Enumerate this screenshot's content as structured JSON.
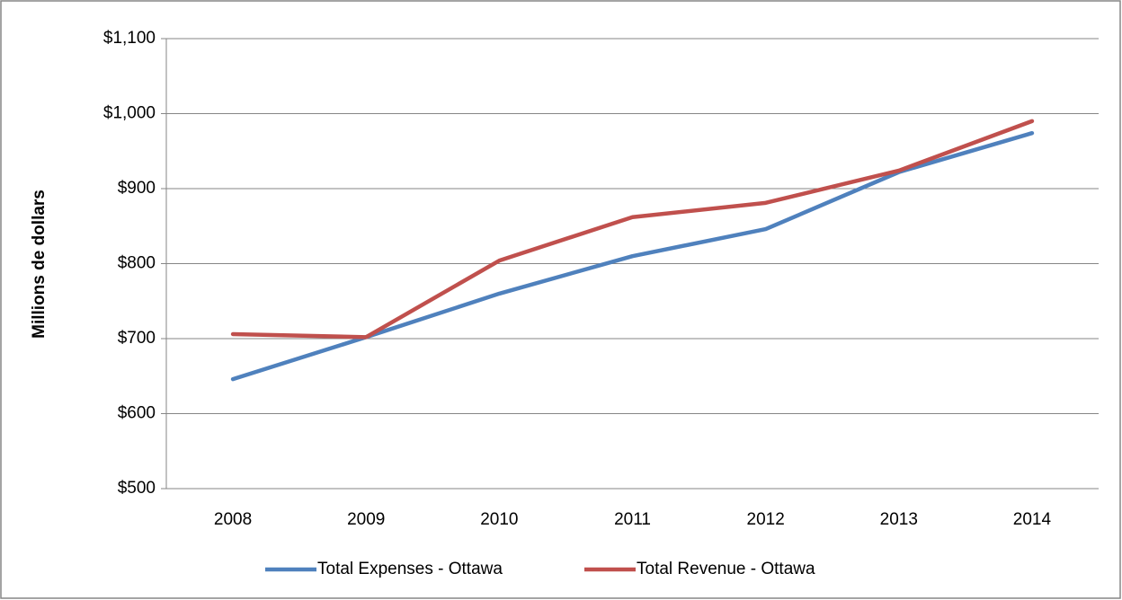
{
  "chart_data": {
    "type": "line",
    "y_label": "Millions de dollars",
    "categories": [
      "2008",
      "2009",
      "2010",
      "2011",
      "2012",
      "2013",
      "2014"
    ],
    "series": [
      {
        "name": "Total Expenses - Ottawa",
        "color": "#4f81bd",
        "values": [
          646,
          702,
          760,
          810,
          846,
          922,
          974
        ]
      },
      {
        "name": "Total Revenue - Ottawa",
        "color": "#c0504d",
        "values": [
          706,
          702,
          804,
          862,
          881,
          924,
          990
        ]
      }
    ],
    "ylim": [
      500,
      1100
    ],
    "yticks": [
      {
        "value": 500,
        "label": "$500"
      },
      {
        "value": 600,
        "label": "$600"
      },
      {
        "value": 700,
        "label": "$700"
      },
      {
        "value": 800,
        "label": "$800"
      },
      {
        "value": 900,
        "label": "$900"
      },
      {
        "value": 1000,
        "label": "$1,000"
      },
      {
        "value": 1100,
        "label": "$1,100"
      }
    ],
    "grid": true,
    "legend": "bottom"
  }
}
